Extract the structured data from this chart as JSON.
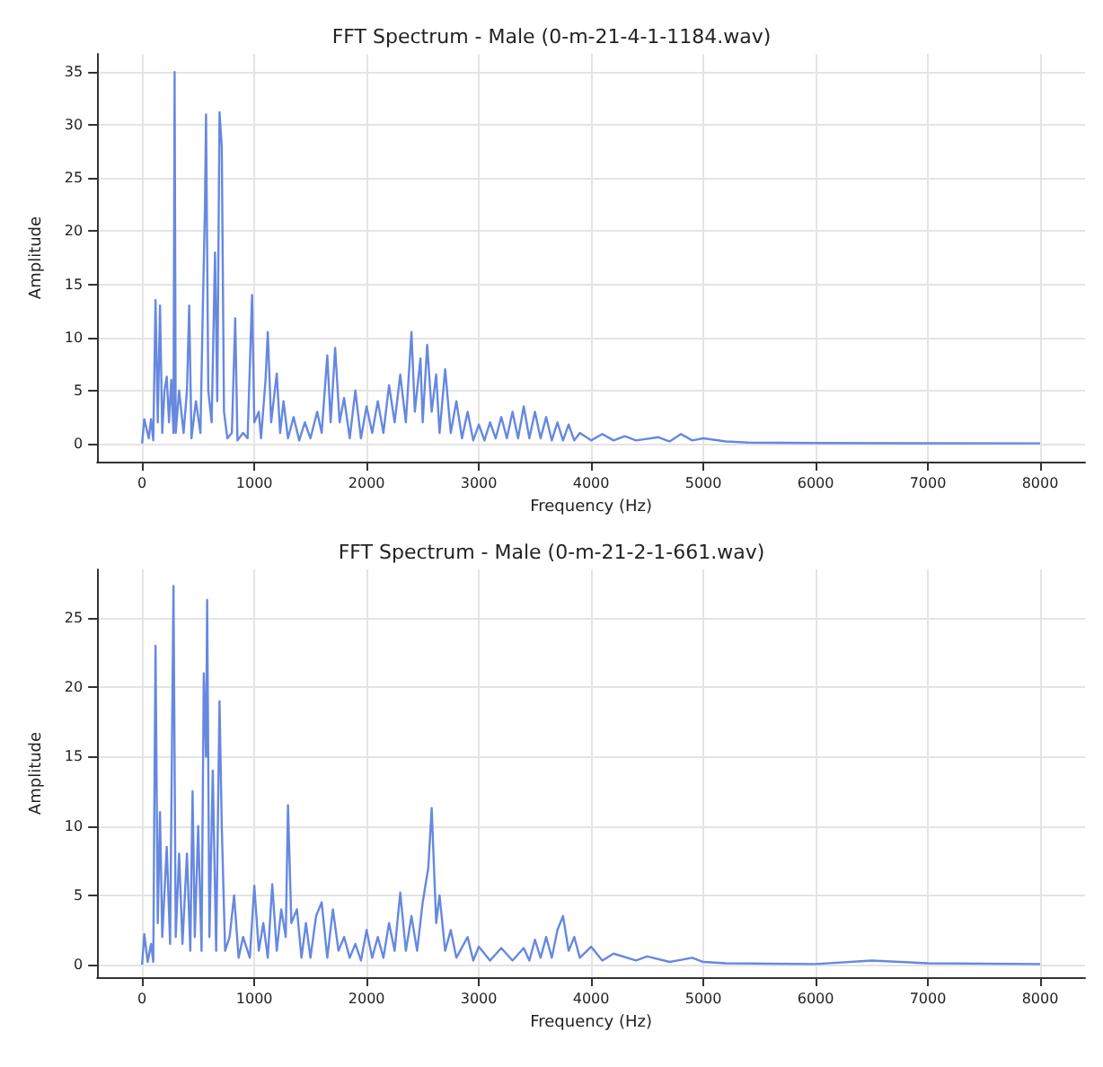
{
  "chart_data": [
    {
      "type": "line",
      "title": "FFT Spectrum - Male (0-m-21-4-1-1184.wav)",
      "xlabel": "Frequency (Hz)",
      "ylabel": "Amplitude",
      "xlim": [
        -400,
        8400
      ],
      "ylim": [
        -1.7,
        36.7
      ],
      "xticks": [
        0,
        1000,
        2000,
        3000,
        4000,
        5000,
        6000,
        7000,
        8000
      ],
      "yticks": [
        0,
        5,
        10,
        15,
        20,
        25,
        30,
        35
      ],
      "grid": true,
      "x": [
        0,
        20,
        60,
        80,
        100,
        120,
        140,
        160,
        180,
        200,
        220,
        240,
        260,
        280,
        290,
        300,
        330,
        370,
        400,
        420,
        440,
        480,
        520,
        540,
        560,
        570,
        590,
        620,
        650,
        670,
        690,
        710,
        730,
        760,
        800,
        830,
        850,
        900,
        940,
        980,
        1000,
        1040,
        1060,
        1100,
        1120,
        1150,
        1200,
        1230,
        1260,
        1300,
        1350,
        1400,
        1450,
        1500,
        1560,
        1600,
        1650,
        1680,
        1720,
        1760,
        1800,
        1850,
        1900,
        1950,
        2000,
        2050,
        2100,
        2150,
        2200,
        2250,
        2300,
        2350,
        2400,
        2430,
        2480,
        2500,
        2540,
        2580,
        2620,
        2650,
        2700,
        2750,
        2800,
        2850,
        2900,
        2950,
        3000,
        3050,
        3100,
        3150,
        3200,
        3250,
        3300,
        3350,
        3400,
        3450,
        3500,
        3550,
        3600,
        3650,
        3700,
        3750,
        3800,
        3850,
        3900,
        4000,
        4100,
        4200,
        4300,
        4400,
        4600,
        4700,
        4800,
        4900,
        5000,
        5200,
        5400,
        6000,
        7000,
        8000
      ],
      "series": [
        {
          "color": "#6688e0",
          "values": [
            0,
            2.3,
            0.5,
            2.3,
            0.3,
            13.5,
            2,
            13,
            1,
            5,
            6.3,
            2,
            6,
            1,
            35,
            1,
            5,
            1,
            5,
            13,
            0.5,
            4,
            1,
            12,
            22,
            31,
            5,
            2,
            18,
            4,
            31.2,
            28,
            3,
            0.5,
            1,
            11.8,
            0.3,
            1,
            0.5,
            14,
            2,
            3,
            0.5,
            6,
            10.5,
            2,
            6.6,
            1,
            4,
            0.5,
            2.5,
            0.3,
            2,
            0.5,
            3,
            1,
            8.3,
            2,
            9,
            2,
            4.3,
            0.5,
            5,
            0.5,
            3.5,
            1,
            4,
            1,
            5.5,
            2,
            6.5,
            2,
            10.5,
            3,
            8,
            2,
            9.3,
            3,
            6.5,
            1,
            7,
            1,
            4,
            0.5,
            3,
            0.3,
            1.8,
            0.3,
            2,
            0.5,
            2.5,
            0.5,
            3,
            0.5,
            3.5,
            0.5,
            3,
            0.5,
            2.5,
            0.3,
            2,
            0.3,
            1.8,
            0.3,
            1,
            0.3,
            0.9,
            0.3,
            0.7,
            0.3,
            0.6,
            0.2,
            0.9,
            0.3,
            0.5,
            0.2,
            0.1,
            0.05,
            0.03,
            0.02
          ]
        }
      ]
    },
    {
      "type": "line",
      "title": "FFT Spectrum - Male (0-m-21-2-1-661.wav)",
      "xlabel": "Frequency (Hz)",
      "ylabel": "Amplitude",
      "xlim": [
        -400,
        8400
      ],
      "ylim": [
        -0.9,
        28.5
      ],
      "xticks": [
        0,
        1000,
        2000,
        3000,
        4000,
        5000,
        6000,
        7000,
        8000
      ],
      "yticks": [
        0,
        5,
        10,
        15,
        20,
        25
      ],
      "grid": true,
      "x": [
        0,
        20,
        50,
        80,
        100,
        110,
        120,
        140,
        160,
        180,
        220,
        250,
        280,
        300,
        330,
        360,
        400,
        430,
        450,
        470,
        500,
        530,
        550,
        570,
        580,
        600,
        630,
        660,
        690,
        710,
        740,
        780,
        820,
        860,
        900,
        960,
        1000,
        1040,
        1080,
        1120,
        1160,
        1200,
        1240,
        1280,
        1300,
        1330,
        1380,
        1420,
        1460,
        1500,
        1550,
        1600,
        1650,
        1700,
        1750,
        1800,
        1850,
        1900,
        1950,
        2000,
        2050,
        2100,
        2150,
        2200,
        2250,
        2300,
        2350,
        2400,
        2450,
        2500,
        2550,
        2580,
        2620,
        2650,
        2700,
        2750,
        2800,
        2900,
        2950,
        3000,
        3100,
        3200,
        3300,
        3400,
        3450,
        3500,
        3550,
        3600,
        3650,
        3700,
        3750,
        3800,
        3850,
        3900,
        4000,
        4100,
        4200,
        4400,
        4500,
        4700,
        4900,
        5000,
        5200,
        6000,
        6500,
        7000,
        8000
      ],
      "series": [
        {
          "color": "#6688e0",
          "values": [
            0,
            2.2,
            0.2,
            1.5,
            0.2,
            12,
            23,
            3,
            11,
            2,
            8.5,
            1.5,
            27.3,
            2,
            8,
            1.5,
            8,
            1,
            12.5,
            2,
            10,
            1,
            21,
            15,
            26.3,
            2,
            14,
            1,
            19,
            10,
            1,
            2,
            5,
            0.5,
            2,
            0.5,
            5.7,
            1,
            3,
            0.5,
            5.8,
            1,
            4,
            2,
            11.5,
            3,
            4,
            0.5,
            3,
            0.5,
            3.5,
            4.5,
            0.5,
            4,
            1,
            2,
            0.5,
            1.5,
            0.3,
            2.5,
            0.5,
            2,
            0.5,
            3,
            1,
            5.2,
            1,
            3.5,
            1,
            4.5,
            7,
            11.3,
            3,
            5,
            1,
            2.5,
            0.5,
            2,
            0.3,
            1.3,
            0.3,
            1.2,
            0.3,
            1.2,
            0.3,
            1.8,
            0.5,
            2,
            0.5,
            2.5,
            3.5,
            1,
            2,
            0.5,
            1.3,
            0.3,
            0.8,
            0.3,
            0.6,
            0.2,
            0.5,
            0.2,
            0.1,
            0.05,
            0.3,
            0.1,
            0.05
          ]
        }
      ]
    }
  ]
}
